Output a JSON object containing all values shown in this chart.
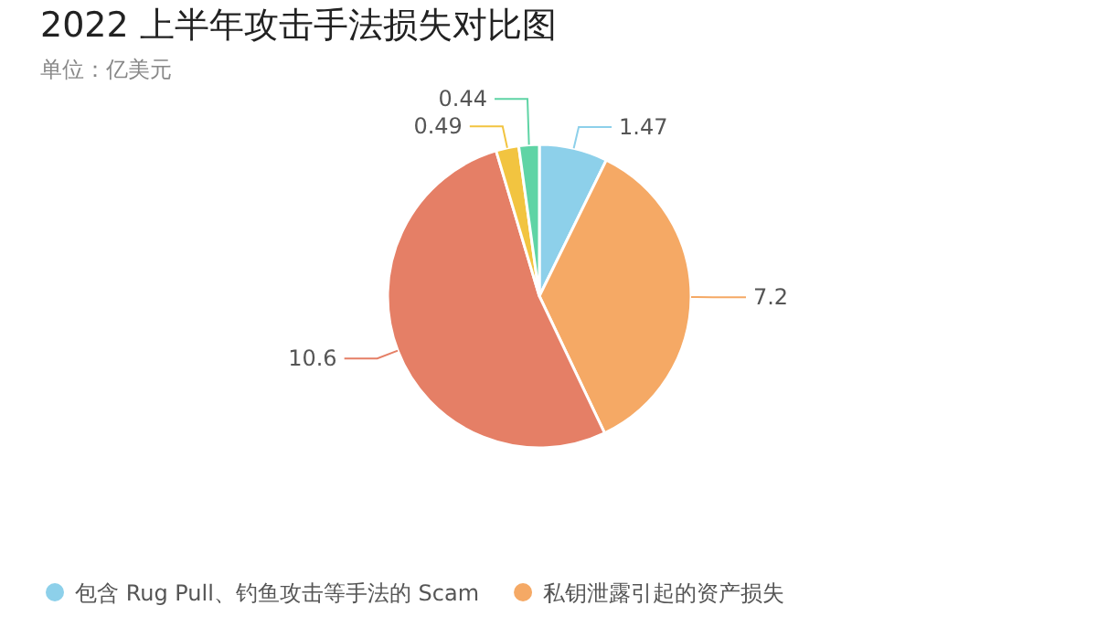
{
  "chart_data": {
    "type": "pie",
    "title": "2022 上半年攻击手法损失对比图",
    "subtitle": "单位：亿美元",
    "categories": [
      "包含 Rug Pull、钓鱼攻击等手法的 Scam",
      "私钥泄露引起的资产损失",
      null,
      null,
      null
    ],
    "values": [
      1.47,
      7.2,
      10.6,
      0.49,
      0.44
    ],
    "colors": [
      "#8dd0ea",
      "#f5a965",
      "#e57f66",
      "#f2c440",
      "#5fd4a5"
    ],
    "data_labels": true,
    "legend": "bottom"
  }
}
